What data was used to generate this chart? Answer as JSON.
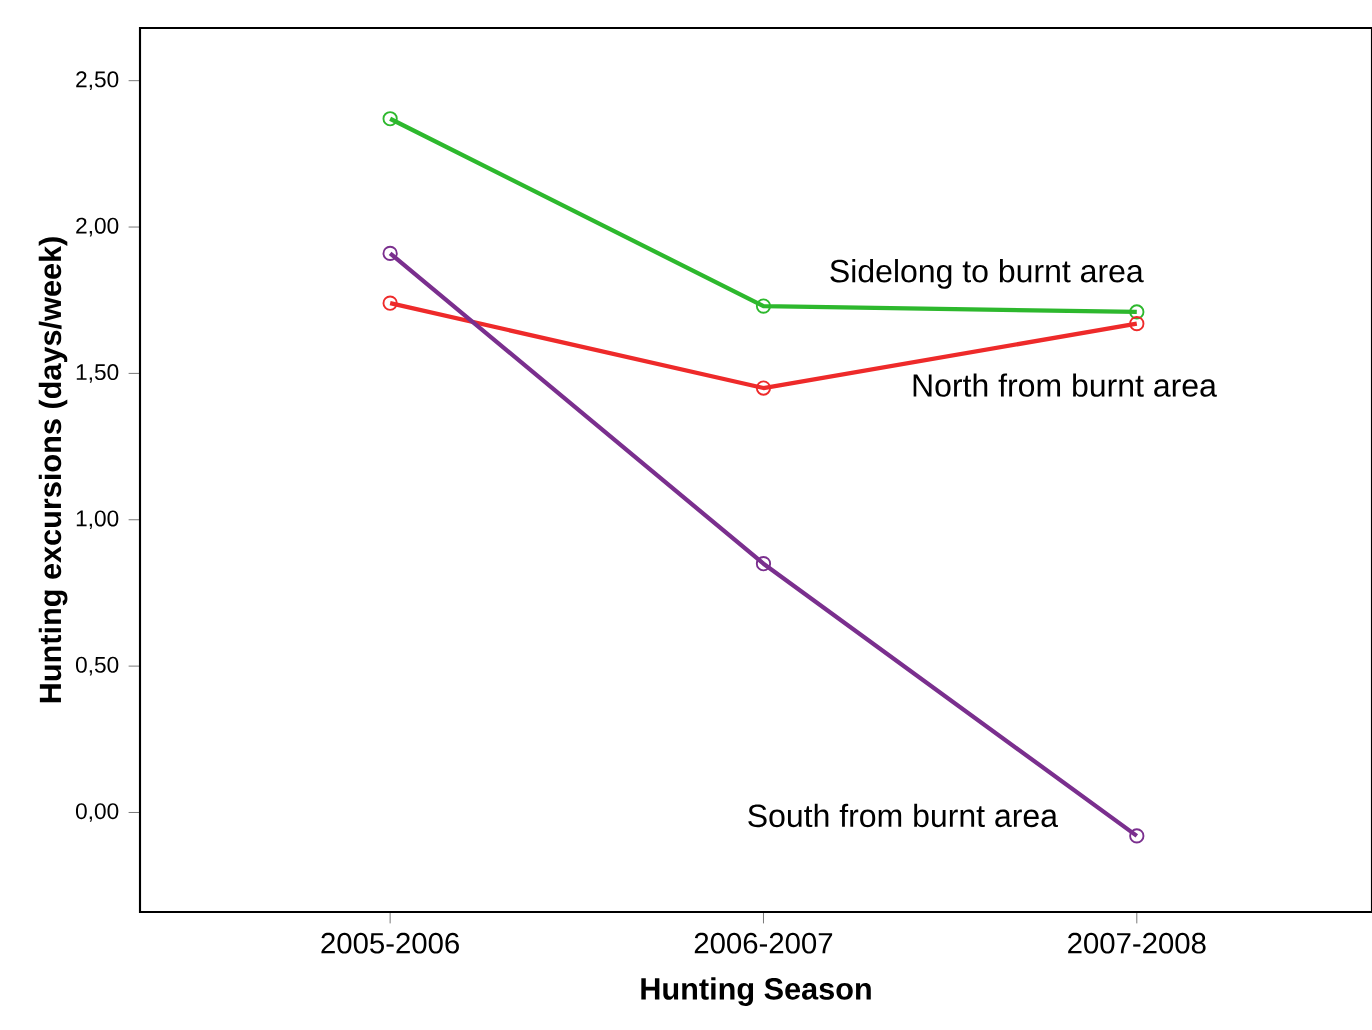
{
  "chart_data": {
    "type": "line",
    "xlabel": "Hunting Season",
    "ylabel": "Hunting excursions (days/week)",
    "categories": [
      "2005-2006",
      "2006-2007",
      "2007-2008"
    ],
    "series": [
      {
        "name": "Sidelong to burnt area",
        "color": "#2db82d",
        "values": [
          2.37,
          1.73,
          1.71
        ]
      },
      {
        "name": "North from burnt area",
        "color": "#ee2a2a",
        "values": [
          1.74,
          1.45,
          1.67
        ]
      },
      {
        "name": "South from burnt area",
        "color": "#7a2f8e",
        "values": [
          1.91,
          0.85,
          -0.08
        ]
      }
    ],
    "ylim": [
      -0.34,
      2.68
    ],
    "yticks": [
      {
        "value": 0,
        "label": "0,00"
      },
      {
        "value": 0.5,
        "label": "0,50"
      },
      {
        "value": 1,
        "label": "1,00"
      },
      {
        "value": 1.5,
        "label": "1,50"
      },
      {
        "value": 2,
        "label": "2,00"
      },
      {
        "value": 2.5,
        "label": "2,50"
      }
    ],
    "marker": "circle",
    "grid": false
  }
}
